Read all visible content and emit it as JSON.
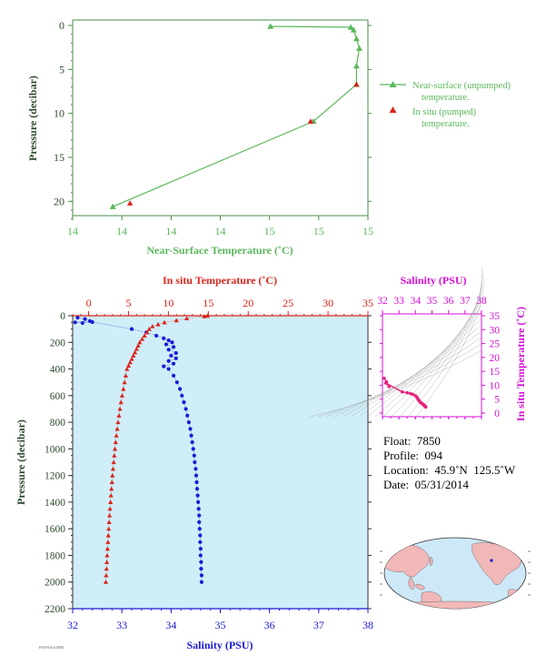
{
  "chart_data": [
    {
      "id": "near_surface",
      "type": "line",
      "xlabel": "Near-Surface Temperature (˚C)",
      "ylabel": "Pressure (decibar)",
      "x_tick_labels": [
        "14",
        "14",
        "14",
        "14",
        "15",
        "15",
        "15"
      ],
      "y_ticks": [
        0,
        5,
        10,
        15,
        20
      ],
      "ylim": [
        0,
        22
      ],
      "x_range_note": "tick labels rounded; approx 14.0 to 15.0",
      "series": [
        {
          "name": "Near-surface (unpumped) temperature.",
          "marker": "triangle",
          "color": "#5cb85c",
          "points": [
            {
              "t": 14.69,
              "p": 0.1
            },
            {
              "t": 14.97,
              "p": 0.2
            },
            {
              "t": 14.98,
              "p": 0.5
            },
            {
              "t": 14.99,
              "p": 1.5
            },
            {
              "t": 15.0,
              "p": 2.6
            },
            {
              "t": 14.99,
              "p": 4.6
            },
            {
              "t": 14.99,
              "p": 6.7
            },
            {
              "t": 14.84,
              "p": 10.9
            },
            {
              "t": 14.14,
              "p": 20.6
            }
          ]
        },
        {
          "name": "In situ (pumped) temperature.",
          "marker": "triangle",
          "color": "#d9251c",
          "points": [
            {
              "t": 14.99,
              "p": 6.7
            },
            {
              "t": 14.83,
              "p": 10.9
            },
            {
              "t": 14.2,
              "p": 20.2
            }
          ]
        }
      ],
      "legend": [
        {
          "line1": "Near-surface (unpumped)",
          "line2": "temperature."
        },
        {
          "line1": "In situ (pumped)",
          "line2": "temperature."
        }
      ],
      "legend_position": "right"
    },
    {
      "id": "profile",
      "type": "scatter",
      "ylabel": "Pressure (decibar)",
      "top_xlabel": "In situ Temperature (˚C)",
      "bottom_xlabel": "Salinity (PSU)",
      "temp_ticks": [
        0,
        5,
        10,
        15,
        20,
        25,
        30,
        35
      ],
      "salinity_ticks": [
        32,
        33,
        34,
        35,
        36,
        37,
        38
      ],
      "pressure_ticks": [
        0,
        200,
        400,
        600,
        800,
        1000,
        1200,
        1400,
        1600,
        1800,
        2000,
        2200
      ],
      "temp_range": [
        -2,
        35
      ],
      "salinity_range": [
        32,
        38
      ],
      "pressure_range": [
        0,
        2200
      ],
      "temperature": [
        [
          14.9,
          0
        ],
        [
          14.5,
          5
        ],
        [
          12.3,
          20
        ],
        [
          11.0,
          35
        ],
        [
          9.5,
          50
        ],
        [
          8.7,
          65
        ],
        [
          8.0,
          80
        ],
        [
          7.6,
          100
        ],
        [
          7.3,
          125
        ],
        [
          7.0,
          150
        ],
        [
          6.7,
          175
        ],
        [
          6.4,
          200
        ],
        [
          6.2,
          225
        ],
        [
          6.0,
          250
        ],
        [
          5.8,
          275
        ],
        [
          5.6,
          300
        ],
        [
          5.4,
          325
        ],
        [
          5.2,
          350
        ],
        [
          5.0,
          375
        ],
        [
          4.8,
          400
        ],
        [
          4.65,
          450
        ],
        [
          4.5,
          500
        ],
        [
          4.35,
          550
        ],
        [
          4.2,
          600
        ],
        [
          4.05,
          650
        ],
        [
          3.92,
          700
        ],
        [
          3.8,
          750
        ],
        [
          3.68,
          800
        ],
        [
          3.58,
          850
        ],
        [
          3.48,
          900
        ],
        [
          3.38,
          950
        ],
        [
          3.3,
          1000
        ],
        [
          3.22,
          1050
        ],
        [
          3.14,
          1100
        ],
        [
          3.06,
          1150
        ],
        [
          2.98,
          1200
        ],
        [
          2.92,
          1250
        ],
        [
          2.86,
          1300
        ],
        [
          2.8,
          1350
        ],
        [
          2.74,
          1400
        ],
        [
          2.68,
          1450
        ],
        [
          2.62,
          1500
        ],
        [
          2.57,
          1550
        ],
        [
          2.52,
          1600
        ],
        [
          2.47,
          1650
        ],
        [
          2.42,
          1700
        ],
        [
          2.37,
          1750
        ],
        [
          2.32,
          1800
        ],
        [
          2.28,
          1850
        ],
        [
          2.24,
          1900
        ],
        [
          2.2,
          1950
        ],
        [
          2.15,
          2000
        ]
      ],
      "salinity": [
        [
          32.1,
          15
        ],
        [
          32.25,
          25
        ],
        [
          32.35,
          40
        ],
        [
          32.05,
          50
        ],
        [
          32.2,
          55
        ],
        [
          32.4,
          48
        ],
        [
          33.2,
          100
        ],
        [
          33.5,
          125
        ],
        [
          33.7,
          150
        ],
        [
          33.85,
          170
        ],
        [
          33.95,
          185
        ],
        [
          34.02,
          200
        ],
        [
          33.9,
          215
        ],
        [
          34.05,
          235
        ],
        [
          33.95,
          255
        ],
        [
          34.1,
          280
        ],
        [
          34.0,
          300
        ],
        [
          34.1,
          320
        ],
        [
          33.95,
          340
        ],
        [
          34.05,
          360
        ],
        [
          33.85,
          380
        ],
        [
          33.95,
          400
        ],
        [
          34.05,
          450
        ],
        [
          34.12,
          500
        ],
        [
          34.18,
          550
        ],
        [
          34.22,
          600
        ],
        [
          34.26,
          650
        ],
        [
          34.3,
          700
        ],
        [
          34.33,
          750
        ],
        [
          34.36,
          800
        ],
        [
          34.39,
          850
        ],
        [
          34.41,
          900
        ],
        [
          34.43,
          950
        ],
        [
          34.45,
          1000
        ],
        [
          34.47,
          1050
        ],
        [
          34.48,
          1100
        ],
        [
          34.5,
          1150
        ],
        [
          34.51,
          1200
        ],
        [
          34.52,
          1250
        ],
        [
          34.53,
          1300
        ],
        [
          34.54,
          1350
        ],
        [
          34.55,
          1400
        ],
        [
          34.56,
          1450
        ],
        [
          34.57,
          1500
        ],
        [
          34.57,
          1550
        ],
        [
          34.58,
          1600
        ],
        [
          34.59,
          1650
        ],
        [
          34.59,
          1700
        ],
        [
          34.6,
          1750
        ],
        [
          34.6,
          1800
        ],
        [
          34.61,
          1850
        ],
        [
          34.61,
          1900
        ],
        [
          34.62,
          1950
        ],
        [
          34.62,
          2000
        ]
      ]
    },
    {
      "id": "ts_diagram",
      "type": "scatter",
      "top_xlabel": "Salinity (PSU)",
      "ylabel": "In situ Temperature (˚C)",
      "salinity_ticks": [
        32,
        33,
        34,
        35,
        36,
        37,
        38
      ],
      "temp_ticks": [
        0,
        5,
        10,
        15,
        20,
        25,
        30,
        35
      ],
      "points": [
        [
          32.1,
          12.5
        ],
        [
          32.25,
          11.2
        ],
        [
          32.4,
          9.5
        ],
        [
          32.2,
          10.8
        ],
        [
          33.2,
          7.6
        ],
        [
          33.5,
          7.3
        ],
        [
          33.7,
          7.0
        ],
        [
          33.85,
          6.7
        ],
        [
          34.0,
          6.2
        ],
        [
          34.1,
          5.6
        ],
        [
          34.15,
          5.0
        ],
        [
          34.2,
          4.6
        ],
        [
          34.25,
          4.2
        ],
        [
          34.3,
          3.8
        ],
        [
          34.36,
          3.6
        ],
        [
          34.42,
          3.3
        ],
        [
          34.47,
          3.1
        ],
        [
          34.5,
          2.9
        ],
        [
          34.53,
          2.8
        ],
        [
          34.56,
          2.6
        ],
        [
          34.59,
          2.4
        ],
        [
          34.62,
          2.2
        ],
        [
          34.62,
          2.15
        ]
      ]
    }
  ],
  "float_info": {
    "float_label": "Float:",
    "float_value": "7850",
    "profile_label": "Profile:",
    "profile_value": "094",
    "location_label": "Location:",
    "location_value": "45.9˚N  125.5˚W",
    "date_label": "Date:",
    "date_value": "05/31/2014"
  },
  "footer_code": "FSI/NOAA 0000",
  "colors": {
    "green": "#5cb85c",
    "red": "#d9251c",
    "blue": "#1a1ad6",
    "magenta": "#d60fd6",
    "pink": "#e8207a",
    "panel_bg": "#d0eef8"
  },
  "map": {
    "projection": "world-map-pacific-centered",
    "marker": "float-location"
  }
}
